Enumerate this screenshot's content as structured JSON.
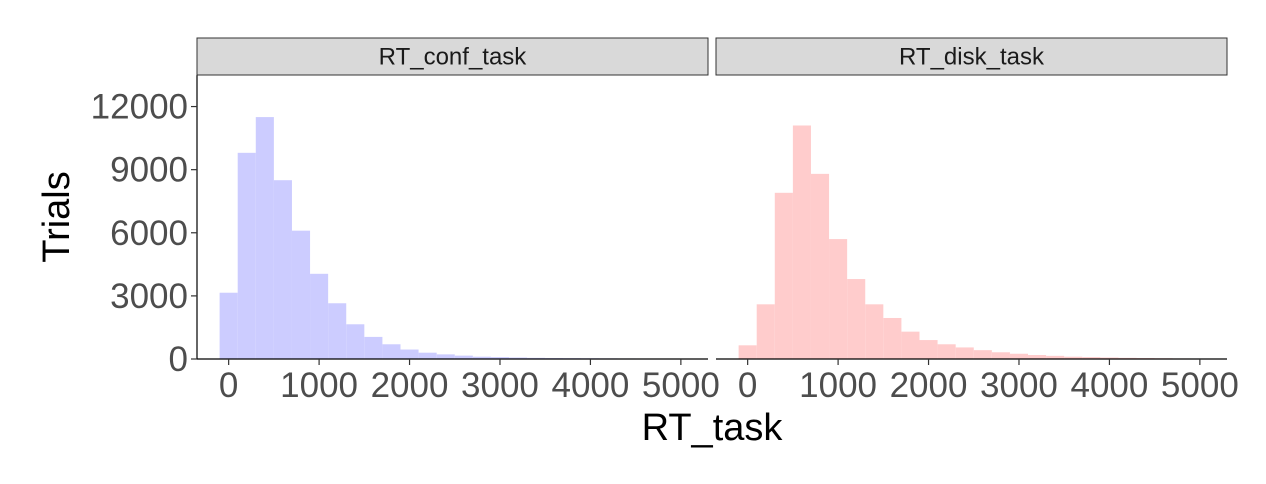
{
  "chart_data": {
    "type": "bar",
    "subtype": "histogram-faceted",
    "xlabel": "RT_task",
    "ylabel": "Trials",
    "ylim": [
      0,
      13500
    ],
    "xlim": [
      -350,
      5300
    ],
    "xticks": [
      0,
      1000,
      2000,
      3000,
      4000,
      5000
    ],
    "yticks": [
      0,
      3000,
      6000,
      9000,
      12000
    ],
    "grid": false,
    "legend": "none",
    "bin_width": 200,
    "facets": [
      {
        "name": "RT_conf_task",
        "color": "#ccccff",
        "bin_starts": [
          -100,
          100,
          300,
          500,
          700,
          900,
          1100,
          1300,
          1500,
          1700,
          1900,
          2100,
          2300,
          2500,
          2700,
          2900,
          3100,
          3300,
          3500,
          3700,
          3900,
          4100,
          4300,
          4500,
          4700
        ],
        "values": [
          3150,
          9800,
          11500,
          8500,
          6100,
          4050,
          2650,
          1650,
          1050,
          700,
          450,
          300,
          220,
          160,
          110,
          90,
          70,
          55,
          45,
          40,
          35,
          30,
          25,
          20,
          15
        ]
      },
      {
        "name": "RT_disk_task",
        "color": "#ffcccc",
        "bin_starts": [
          -100,
          100,
          300,
          500,
          700,
          900,
          1100,
          1300,
          1500,
          1700,
          1900,
          2100,
          2300,
          2500,
          2700,
          2900,
          3100,
          3300,
          3500,
          3700,
          3900,
          4100,
          4300,
          4500,
          4700,
          4900
        ],
        "values": [
          650,
          2600,
          7900,
          11100,
          8800,
          5700,
          3800,
          2600,
          1950,
          1300,
          900,
          700,
          550,
          420,
          320,
          250,
          190,
          150,
          110,
          90,
          70,
          55,
          45,
          35,
          25,
          20
        ]
      }
    ]
  }
}
